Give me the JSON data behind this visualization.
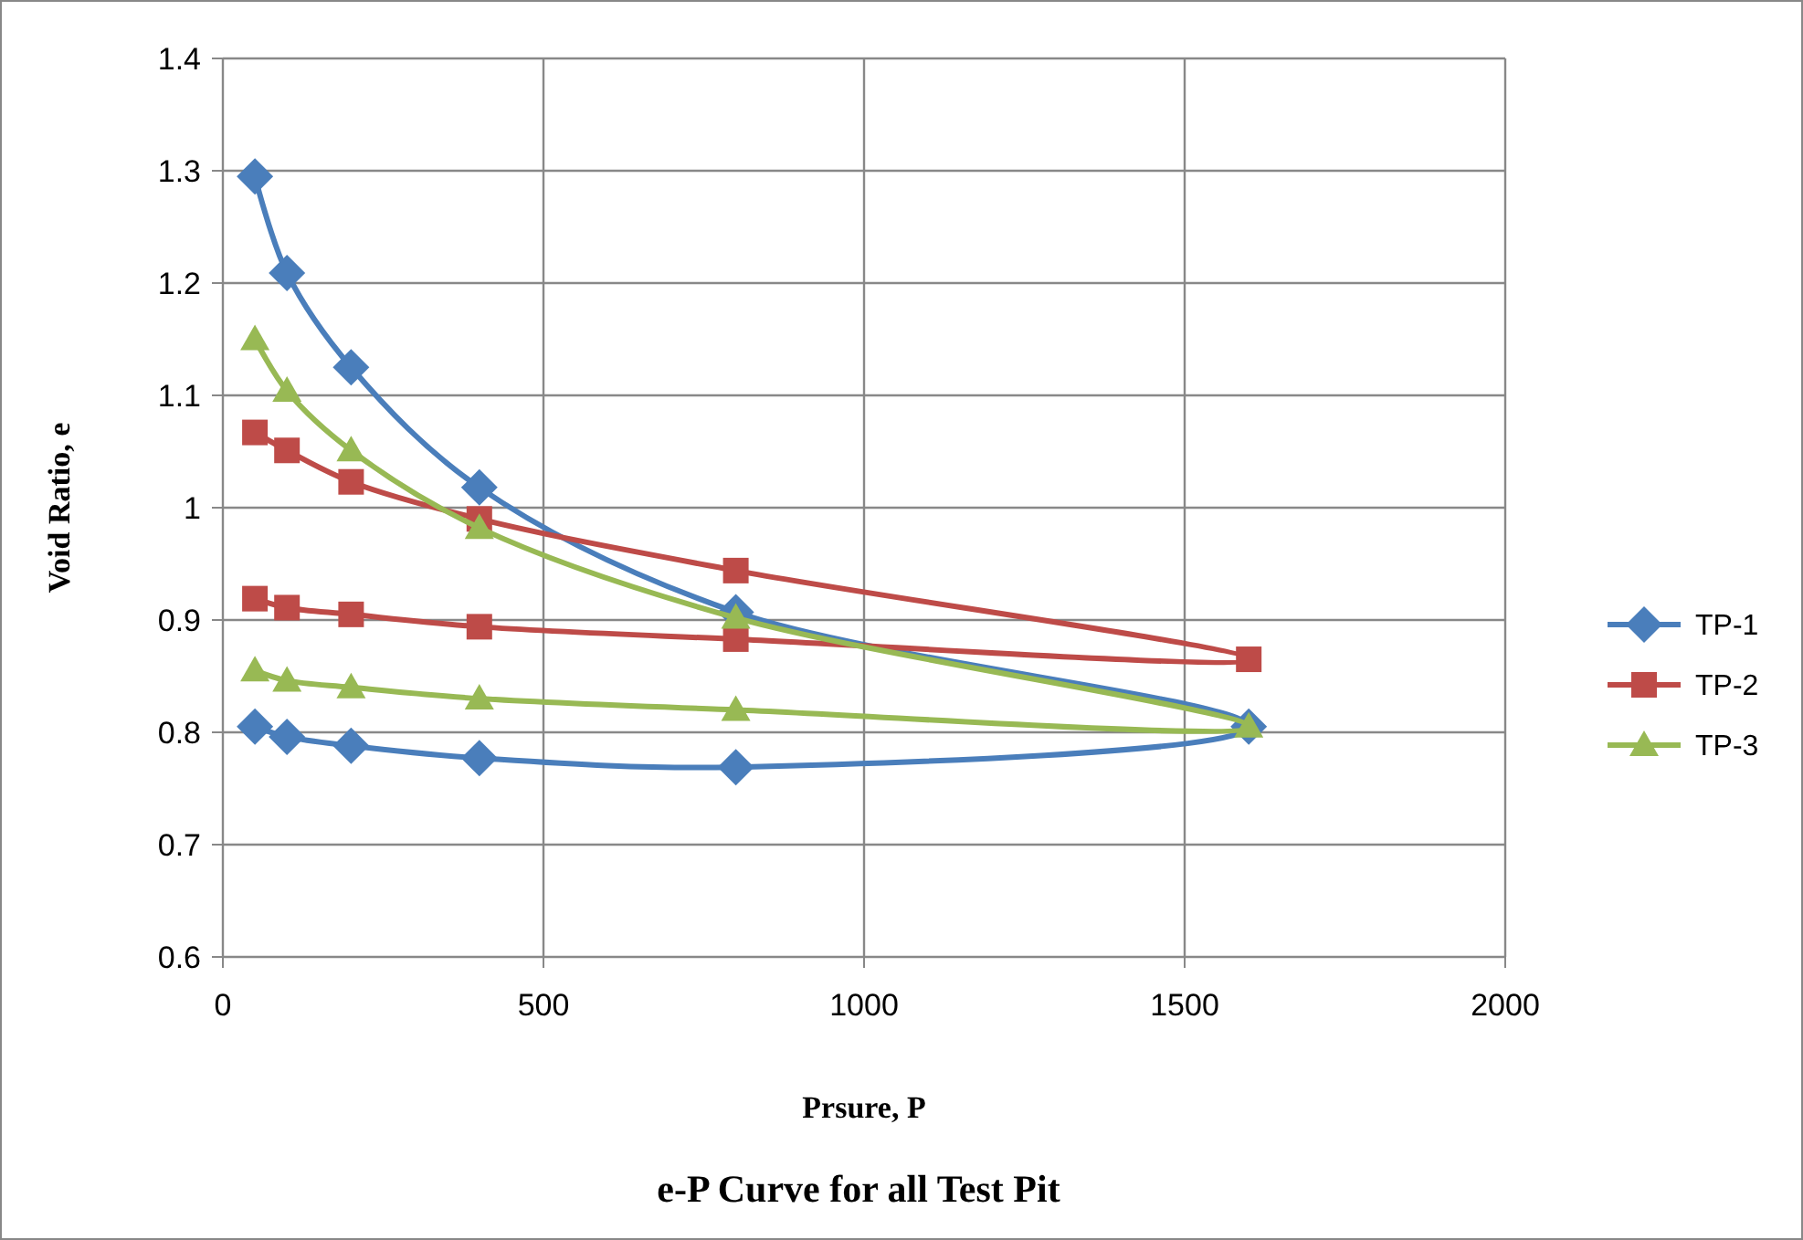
{
  "chart_data": {
    "type": "line",
    "title": "e-P Curve for all Test Pit",
    "xlabel": "Prsure, P",
    "ylabel": "Void Ratio, e",
    "x": [
      50,
      100,
      200,
      400,
      800,
      1600,
      800,
      400,
      200,
      100,
      50
    ],
    "xlim": [
      0,
      2000
    ],
    "xticks": [
      0,
      500,
      1000,
      1500,
      2000
    ],
    "ylim": [
      0.6,
      1.4
    ],
    "yticks": [
      0.6,
      0.7,
      0.8,
      0.9,
      1,
      1.1,
      1.2,
      1.3,
      1.4
    ],
    "grid": true,
    "legend": "right",
    "series": [
      {
        "name": "TP-1",
        "color": "#4a7ebb",
        "marker": "diamond",
        "values": [
          1.295,
          1.209,
          1.125,
          1.018,
          0.907,
          0.805,
          0.769,
          0.777,
          0.788,
          0.796,
          0.805
        ]
      },
      {
        "name": "TP-2",
        "color": "#be4b48",
        "marker": "square",
        "values": [
          1.067,
          1.051,
          1.023,
          0.99,
          0.944,
          0.865,
          0.883,
          0.894,
          0.905,
          0.911,
          0.919
        ]
      },
      {
        "name": "TP-3",
        "color": "#98b954",
        "marker": "triangle",
        "values": [
          1.15,
          1.104,
          1.051,
          0.982,
          0.902,
          0.805,
          0.82,
          0.83,
          0.84,
          0.846,
          0.855
        ]
      }
    ]
  }
}
